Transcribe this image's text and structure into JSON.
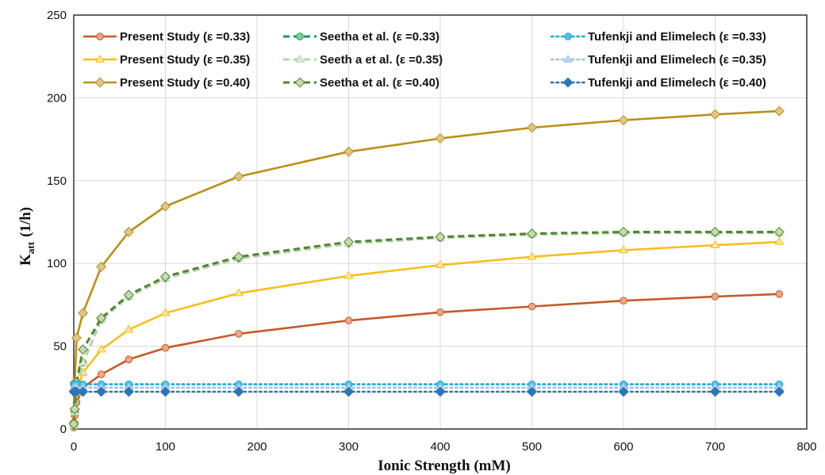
{
  "chart_data": {
    "type": "line",
    "xlabel": "Ionic Strength (mM)",
    "ylabel_main": "K",
    "ylabel_sub": "att",
    "ylabel_unit": "(1/h)",
    "xlim": [
      0,
      800
    ],
    "ylim": [
      0,
      250
    ],
    "xticks": [
      0,
      100,
      200,
      300,
      400,
      500,
      600,
      700,
      800
    ],
    "yticks": [
      0,
      50,
      100,
      150,
      200,
      250
    ],
    "grid": true,
    "legend_position": "top",
    "series": [
      {
        "name": "Present Study (ε =0.33)",
        "color": "#c55a28",
        "dash": "solid",
        "marker": "circle",
        "marker_fill": "#e6a889",
        "x": [
          0.1,
          1,
          3,
          10,
          30,
          60,
          100,
          180,
          300,
          400,
          500,
          600,
          700,
          770
        ],
        "y": [
          1,
          8,
          16,
          25,
          33,
          42,
          49,
          57.5,
          65.5,
          70.5,
          74,
          77.5,
          80,
          81.5
        ]
      },
      {
        "name": "Present Study (ε =0.35)",
        "color": "#f7be1c",
        "dash": "solid",
        "marker": "triangle",
        "marker_fill": "#fbe6a3",
        "x": [
          0.1,
          1,
          3,
          10,
          30,
          60,
          100,
          180,
          300,
          400,
          500,
          600,
          700,
          770
        ],
        "y": [
          2,
          12,
          22,
          34,
          48,
          60,
          70,
          82,
          92.5,
          99,
          104,
          108,
          111,
          113
        ]
      },
      {
        "name": "Present Study (ε =0.40)",
        "color": "#b8901a",
        "dash": "solid",
        "marker": "diamond",
        "marker_fill": "#dcc78a",
        "x": [
          0.1,
          1,
          3,
          10,
          30,
          60,
          100,
          180,
          300,
          400,
          500,
          600,
          700,
          770
        ],
        "y": [
          4,
          28,
          55,
          70,
          98,
          119,
          134.5,
          152.5,
          167.5,
          175.5,
          182,
          186.5,
          190,
          192
        ]
      },
      {
        "name": "Seetha et al. (ε =0.33)",
        "color": "#1a9a5a",
        "dash": "dash",
        "marker": "circle",
        "marker_fill": "#7fcf9f",
        "x": [
          0.1,
          1,
          3,
          10,
          30,
          60,
          100,
          180,
          300,
          400,
          500,
          600,
          700,
          770
        ],
        "y": [
          2,
          10,
          25,
          40,
          66,
          80,
          91,
          103,
          112,
          115.5,
          117.5,
          118.5,
          118.5,
          118.5
        ]
      },
      {
        "name": "Seeth a et al. (ε =0.35)",
        "color": "#b3d6a8",
        "dash": "dash",
        "marker": "triangle",
        "marker_fill": "#dcead5",
        "x": [
          0.1,
          1,
          3,
          10,
          30,
          60,
          100,
          180,
          300,
          400,
          500,
          600,
          700,
          770
        ],
        "y": [
          2,
          10,
          25,
          40,
          66,
          80,
          91,
          103,
          112,
          115.5,
          117.5,
          118.5,
          118.5,
          118.5
        ]
      },
      {
        "name": "Seetha et al. (ε =0.40)",
        "color": "#548235",
        "dash": "dash",
        "marker": "diamond",
        "marker_fill": "#c5dbb0",
        "x": [
          0.1,
          1,
          3,
          10,
          30,
          60,
          100,
          180,
          300,
          400,
          500,
          600,
          700,
          770
        ],
        "y": [
          3,
          12,
          28,
          48,
          67,
          81,
          92,
          104,
          113,
          116,
          118,
          119,
          119,
          119
        ]
      },
      {
        "name": "Tufenkji and Elimelech (ε =0.33)",
        "color": "#1fa8d8",
        "dash": "dot",
        "marker": "circle",
        "marker_fill": "#4fc3ea",
        "x": [
          0.1,
          1,
          3,
          10,
          30,
          60,
          100,
          180,
          300,
          400,
          500,
          600,
          700,
          770
        ],
        "y": [
          27,
          27,
          27,
          27,
          27,
          27,
          27,
          27,
          27,
          27,
          27,
          27,
          27,
          27
        ]
      },
      {
        "name": "Tufenkji and Elimelech (ε =0.35)",
        "color": "#9dc3e6",
        "dash": "dot",
        "marker": "triangle",
        "marker_fill": "#bdd7ee",
        "x": [
          0.1,
          1,
          3,
          10,
          30,
          60,
          100,
          180,
          300,
          400,
          500,
          600,
          700,
          770
        ],
        "y": [
          25,
          25,
          25,
          25,
          25,
          25,
          25,
          25,
          25,
          25,
          25,
          25,
          25,
          25
        ]
      },
      {
        "name": "Tufenkji and Elimelech (ε =0.40)",
        "color": "#2e75b6",
        "dash": "dot",
        "marker": "diamond",
        "marker_fill": "#2e75b6",
        "x": [
          0.1,
          1,
          3,
          10,
          30,
          60,
          100,
          180,
          300,
          400,
          500,
          600,
          700,
          770
        ],
        "y": [
          22.5,
          22.5,
          22.5,
          22.5,
          22.5,
          22.5,
          22.5,
          22.5,
          22.5,
          22.5,
          22.5,
          22.5,
          22.5,
          22.5
        ]
      }
    ]
  }
}
